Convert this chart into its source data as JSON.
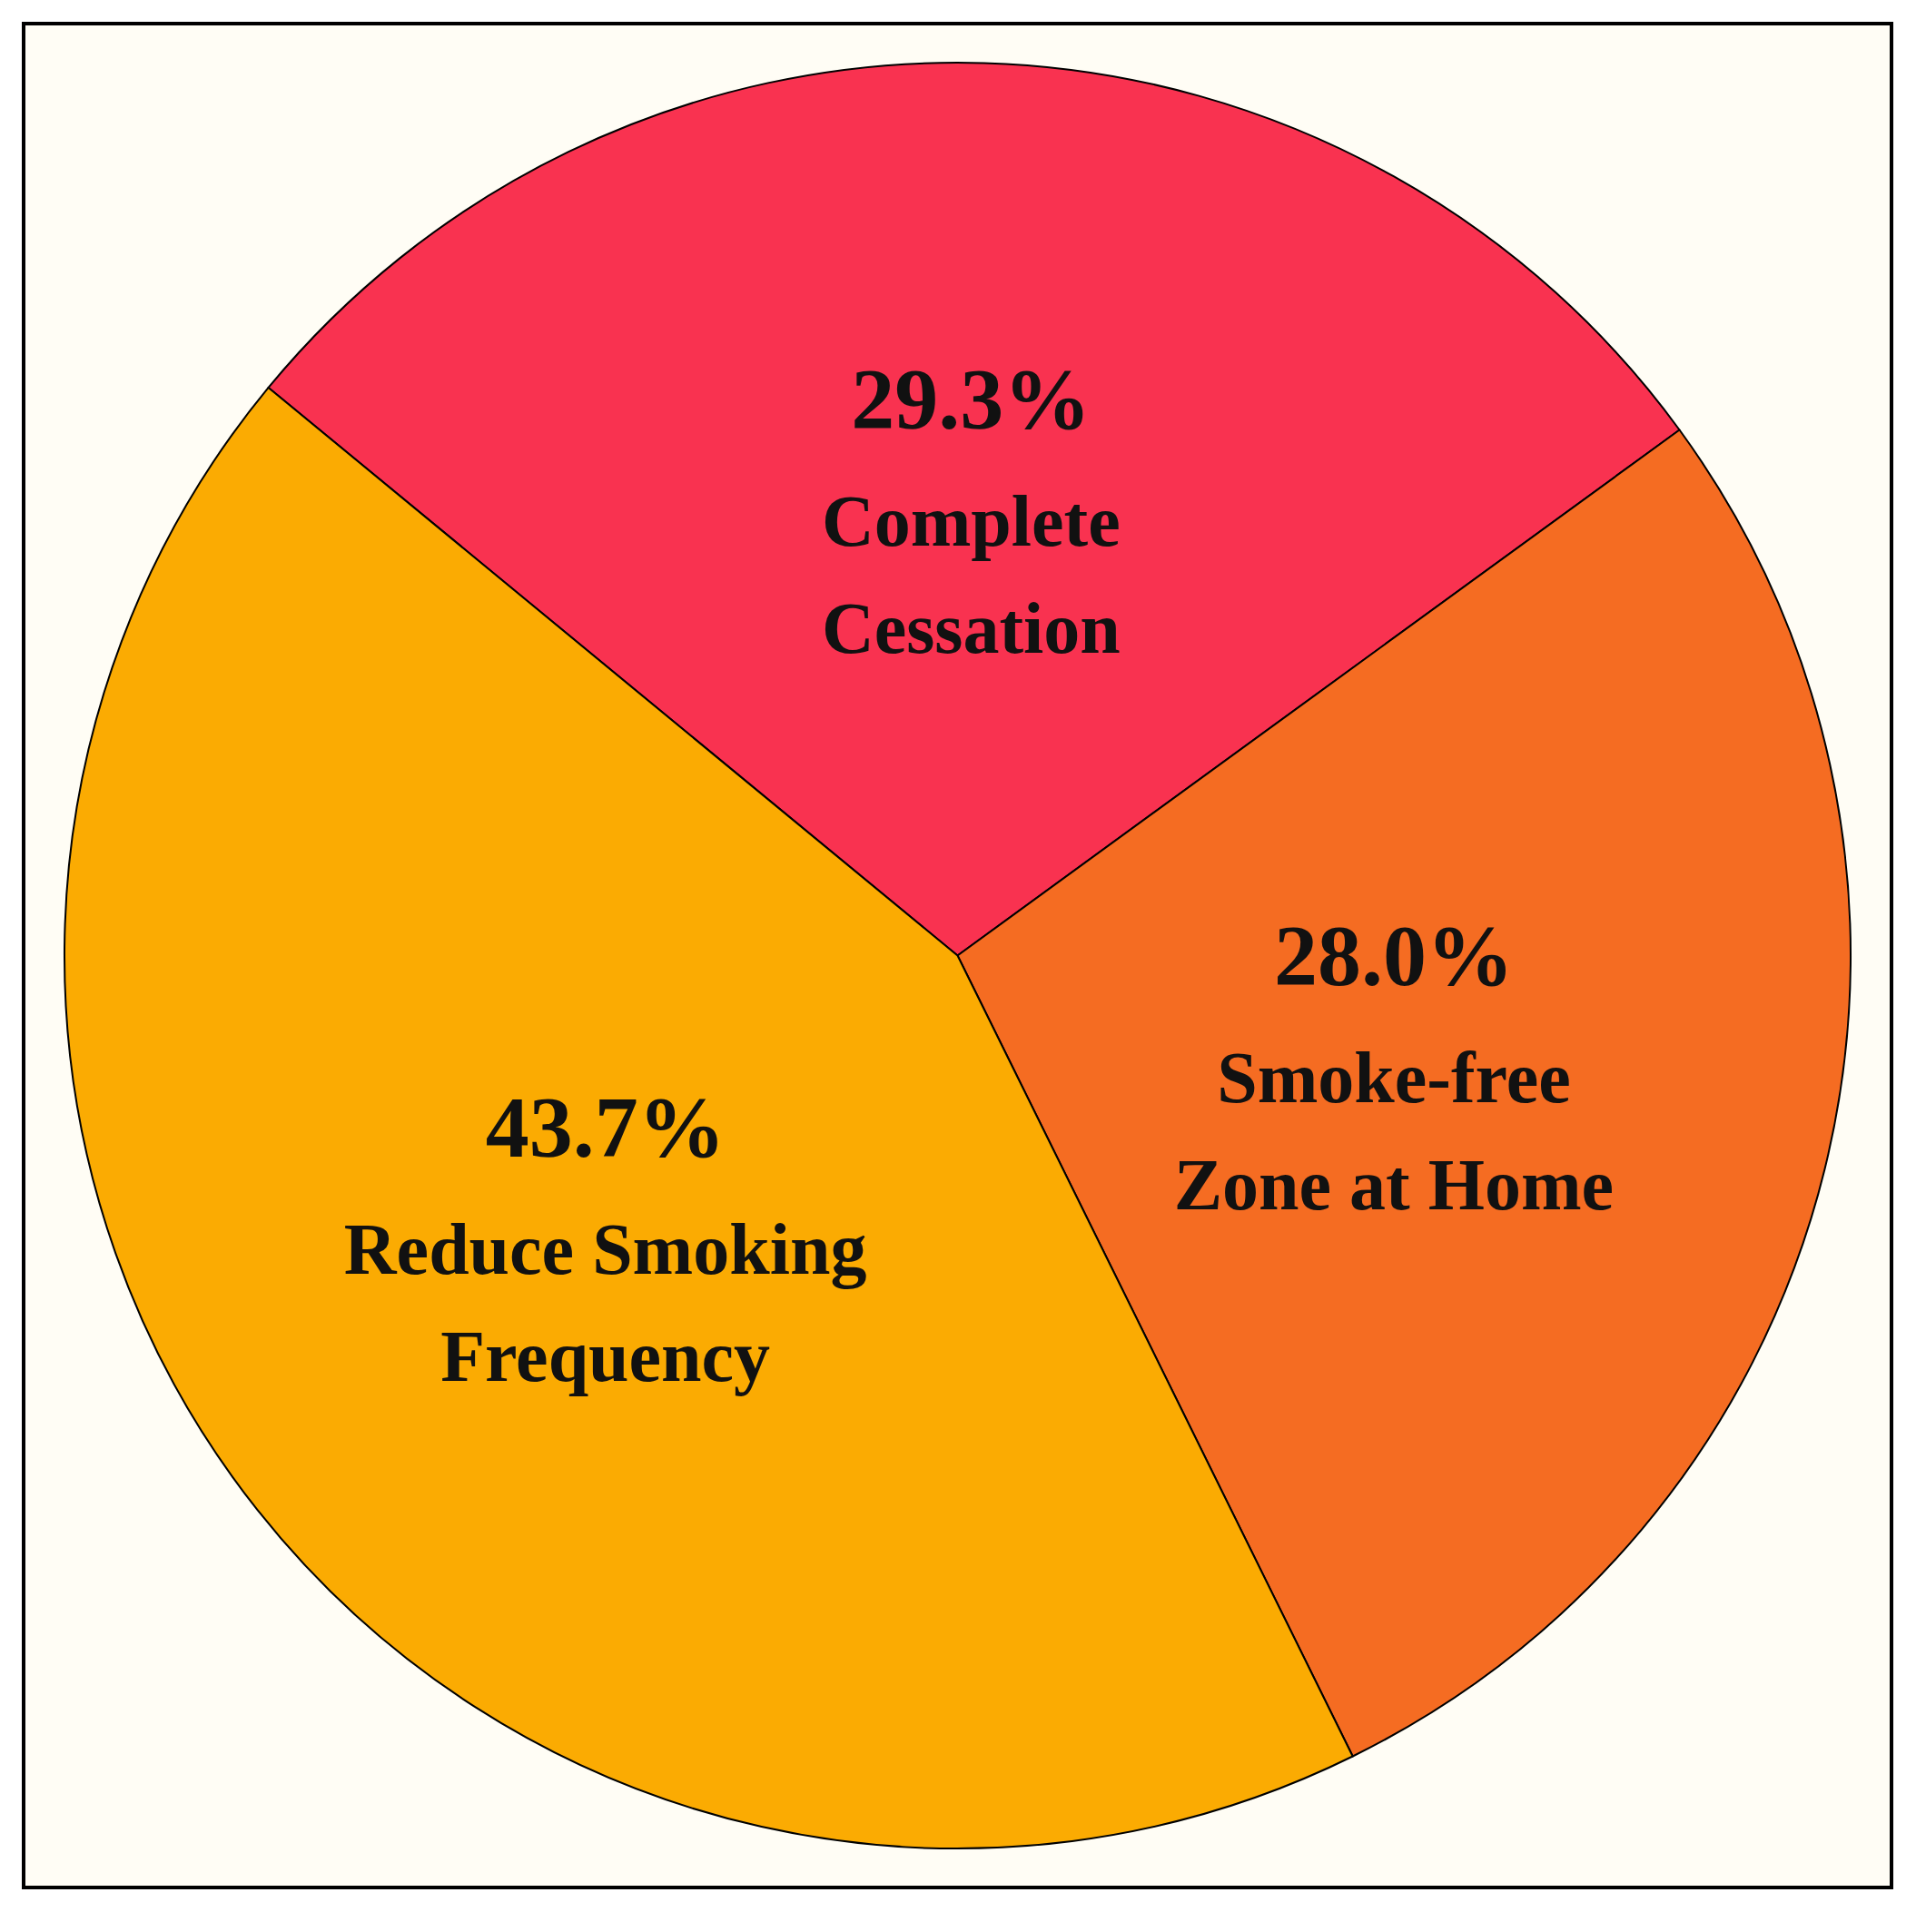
{
  "chart_data": {
    "type": "pie",
    "categories": [
      "Complete Cessation",
      "Smoke-free Zone at Home",
      "Reduce Smoking Frequency"
    ],
    "values": [
      29.3,
      28.0,
      43.7
    ],
    "colors": [
      "#f93250",
      "#f56c22",
      "#fbab02"
    ],
    "value_labels": [
      "29.3%",
      "28.0%",
      "43.7%"
    ]
  }
}
